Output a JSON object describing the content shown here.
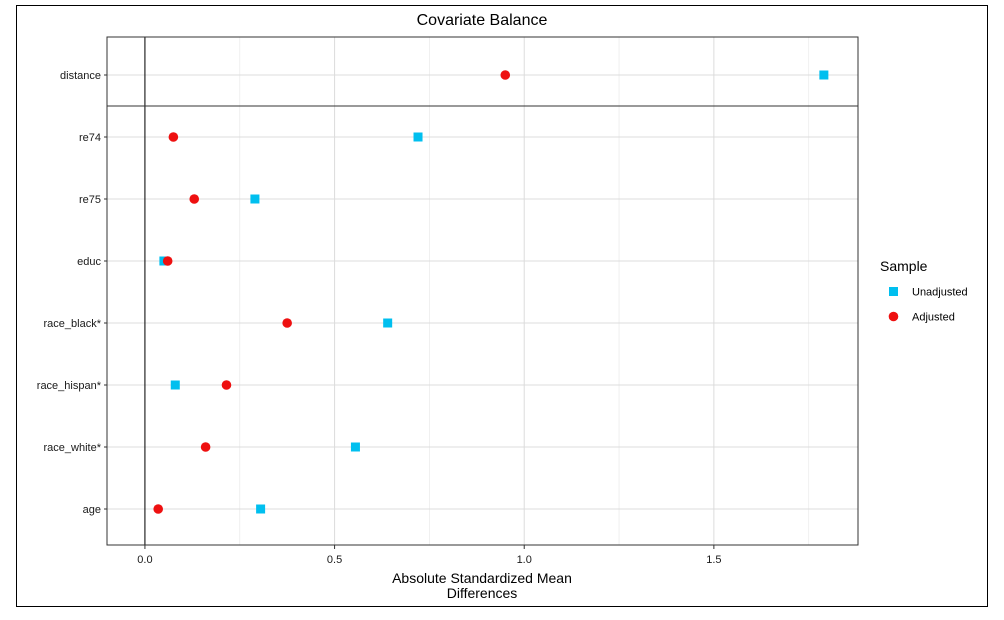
{
  "chart_data": {
    "type": "scatter",
    "title": "Covariate Balance",
    "xlabel": [
      "Absolute Standardized Mean",
      "Differences"
    ],
    "ylabel": "",
    "xlim": [
      -0.1,
      1.88
    ],
    "xticks": [
      0.0,
      0.5,
      1.0,
      1.5
    ],
    "xtick_labels": [
      "0.0",
      "0.5",
      "1.0",
      "1.5"
    ],
    "grid": true,
    "reference_line_x": 0,
    "categories": [
      "distance",
      "re74",
      "re75",
      "educ",
      "race_black*",
      "race_hispan*",
      "race_white*",
      "age"
    ],
    "separator_after": "distance",
    "legend": {
      "title": "Sample",
      "placement": "right"
    },
    "series": [
      {
        "name": "Unadjusted",
        "marker": "square",
        "color": "#00bfef",
        "values": [
          1.79,
          0.72,
          0.29,
          0.05,
          0.64,
          0.08,
          0.555,
          0.305
        ]
      },
      {
        "name": "Adjusted",
        "marker": "circle",
        "color": "#ee1010",
        "values": [
          0.95,
          0.075,
          0.13,
          0.06,
          0.375,
          0.215,
          0.16,
          0.035
        ]
      }
    ]
  }
}
